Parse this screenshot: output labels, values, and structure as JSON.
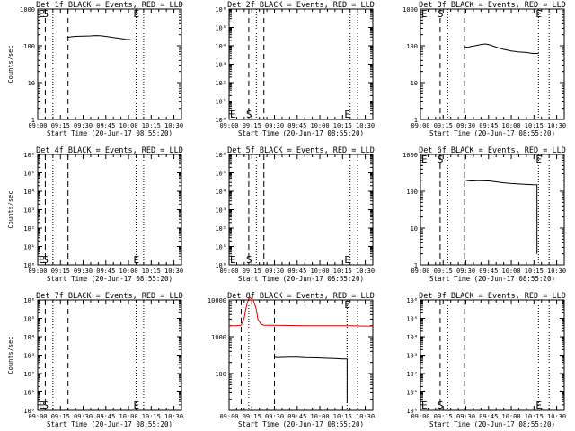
{
  "shared": {
    "ylabel": "Counts/sec",
    "xlabel": "Start Time (20-Jun-17 08:55:20)",
    "xticks": [
      "09:00",
      "09:15",
      "09:30",
      "09:45",
      "10:00",
      "10:15",
      "10:30"
    ],
    "x_range_min": [
      0,
      95
    ],
    "colors": {
      "events": "#000000",
      "lld": "#dd0000",
      "axes": "#000000",
      "background": "#ffffff"
    }
  },
  "chart_data": [
    {
      "type": "line",
      "title": "Det 1f BLACK = Events, RED = LLD",
      "xlabel": "Start Time (20-Jun-17 08:55:20)",
      "ylabel": "Counts/sec",
      "y_scale": "log",
      "ylim": [
        1,
        1000
      ],
      "yticks": [
        {
          "value": 1,
          "label": "1"
        },
        {
          "value": 10,
          "label": "10"
        },
        {
          "value": 100,
          "label": "100"
        },
        {
          "value": 1000,
          "label": "1000"
        }
      ],
      "markers": [
        {
          "label": "E",
          "x": 0,
          "y": 1000
        },
        {
          "label": "S",
          "x": 5,
          "y": 1000
        },
        {
          "label": "E",
          "x": 65,
          "y": 1000
        }
      ],
      "dashed_lines": [
        5,
        20
      ],
      "dotted_lines": [
        10,
        65,
        70
      ],
      "series": [
        {
          "color": "events",
          "points": [
            [
              20,
              170
            ],
            [
              22,
              175
            ],
            [
              25,
              180
            ],
            [
              30,
              182
            ],
            [
              35,
              185
            ],
            [
              38,
              190
            ],
            [
              41,
              188
            ],
            [
              45,
              180
            ],
            [
              50,
              168
            ],
            [
              55,
              158
            ],
            [
              58,
              150
            ],
            [
              60,
              148
            ],
            [
              62,
              145
            ],
            [
              63,
              142
            ]
          ]
        }
      ]
    },
    {
      "type": "line",
      "title": "Det 2f BLACK = Events, RED = LLD",
      "xlabel": "Start Time (20-Jun-17 08:55:20)",
      "ylabel": "",
      "y_scale": "log",
      "ylim": [
        1,
        1000000
      ],
      "yticks": [
        {
          "value": 1,
          "label": "10⁰"
        },
        {
          "value": 10,
          "label": "10¹"
        },
        {
          "value": 100,
          "label": "10²"
        },
        {
          "value": 1000,
          "label": "10³"
        },
        {
          "value": 10000,
          "label": "10⁴"
        },
        {
          "value": 100000,
          "label": "10⁵"
        },
        {
          "value": 1000000,
          "label": "10⁶"
        }
      ],
      "markers": [
        {
          "label": "E",
          "x": 0,
          "y": 1.6
        },
        {
          "label": "S",
          "x": 13,
          "y": 1.6
        },
        {
          "label": "E",
          "x": 78,
          "y": 1.6
        }
      ],
      "dashed_lines": [
        13,
        23
      ],
      "dotted_lines": [
        18,
        80,
        85
      ],
      "series": []
    },
    {
      "type": "line",
      "title": "Det 3f BLACK = Events, RED = LLD",
      "xlabel": "Start Time (20-Jun-17 08:55:20)",
      "ylabel": "",
      "y_scale": "log",
      "ylim": [
        1,
        1000
      ],
      "yticks": [
        {
          "value": 1,
          "label": "1"
        },
        {
          "value": 10,
          "label": "10"
        },
        {
          "value": 100,
          "label": "100"
        },
        {
          "value": 1000,
          "label": "1000"
        }
      ],
      "markers": [
        {
          "label": "E",
          "x": 0,
          "y": 1000
        },
        {
          "label": "S",
          "x": 13,
          "y": 1000
        },
        {
          "label": "E",
          "x": 78,
          "y": 1000
        }
      ],
      "dashed_lines": [
        13,
        29
      ],
      "dotted_lines": [
        18,
        78,
        85
      ],
      "series": [
        {
          "color": "events",
          "points": [
            [
              29,
              95
            ],
            [
              31,
              90
            ],
            [
              33,
              95
            ],
            [
              36,
              100
            ],
            [
              40,
              108
            ],
            [
              43,
              112
            ],
            [
              46,
              105
            ],
            [
              50,
              92
            ],
            [
              55,
              80
            ],
            [
              60,
              72
            ],
            [
              65,
              68
            ],
            [
              70,
              66
            ],
            [
              74,
              62
            ],
            [
              78,
              62
            ]
          ]
        }
      ]
    },
    {
      "type": "line",
      "title": "Det 4f BLACK = Events, RED = LLD",
      "xlabel": "Start Time (20-Jun-17 08:55:20)",
      "ylabel": "Counts/sec",
      "y_scale": "log",
      "ylim": [
        1,
        1000000
      ],
      "yticks": [
        {
          "value": 1,
          "label": "10⁰"
        },
        {
          "value": 10,
          "label": "10¹"
        },
        {
          "value": 100,
          "label": "10²"
        },
        {
          "value": 1000,
          "label": "10³"
        },
        {
          "value": 10000,
          "label": "10⁴"
        },
        {
          "value": 100000,
          "label": "10⁵"
        },
        {
          "value": 1000000,
          "label": "10⁶"
        }
      ],
      "markers": [
        {
          "label": "E",
          "x": 0,
          "y": 1.6
        },
        {
          "label": "S",
          "x": 5,
          "y": 1.6
        },
        {
          "label": "E",
          "x": 65,
          "y": 1.6
        }
      ],
      "dashed_lines": [
        5,
        20
      ],
      "dotted_lines": [
        10,
        65,
        70
      ],
      "series": []
    },
    {
      "type": "line",
      "title": "Det 5f BLACK = Events, RED = LLD",
      "xlabel": "Start Time (20-Jun-17 08:55:20)",
      "ylabel": "",
      "y_scale": "log",
      "ylim": [
        1,
        1000000
      ],
      "yticks": [
        {
          "value": 1,
          "label": "10⁰"
        },
        {
          "value": 10,
          "label": "10¹"
        },
        {
          "value": 100,
          "label": "10²"
        },
        {
          "value": 1000,
          "label": "10³"
        },
        {
          "value": 10000,
          "label": "10⁴"
        },
        {
          "value": 100000,
          "label": "10⁵"
        },
        {
          "value": 1000000,
          "label": "10⁶"
        }
      ],
      "markers": [
        {
          "label": "E",
          "x": 0,
          "y": 1.6
        },
        {
          "label": "S",
          "x": 13,
          "y": 1.6
        },
        {
          "label": "E",
          "x": 78,
          "y": 1.6
        }
      ],
      "dashed_lines": [
        13,
        23
      ],
      "dotted_lines": [
        18,
        80,
        85
      ],
      "series": []
    },
    {
      "type": "line",
      "title": "Det 6f BLACK = Events, RED = LLD",
      "xlabel": "Start Time (20-Jun-17 08:55:20)",
      "ylabel": "",
      "y_scale": "log",
      "ylim": [
        1,
        1000
      ],
      "yticks": [
        {
          "value": 1,
          "label": "1"
        },
        {
          "value": 10,
          "label": "10"
        },
        {
          "value": 100,
          "label": "100"
        },
        {
          "value": 1000,
          "label": "1000"
        }
      ],
      "markers": [
        {
          "label": "E",
          "x": 0,
          "y": 1000
        },
        {
          "label": "S",
          "x": 13,
          "y": 1000
        },
        {
          "label": "E",
          "x": 78,
          "y": 1000
        }
      ],
      "dashed_lines": [
        13,
        29
      ],
      "dotted_lines": [
        18,
        78,
        85
      ],
      "series": [
        {
          "color": "events",
          "points": [
            [
              29,
              205
            ],
            [
              31,
              195
            ],
            [
              34,
              190
            ],
            [
              38,
              195
            ],
            [
              42,
              192
            ],
            [
              46,
              190
            ],
            [
              50,
              180
            ],
            [
              55,
              170
            ],
            [
              60,
              162
            ],
            [
              65,
              158
            ],
            [
              70,
              153
            ],
            [
              75,
              150
            ],
            [
              77,
              150
            ],
            [
              77,
              2
            ]
          ]
        }
      ]
    },
    {
      "type": "line",
      "title": "Det 7f BLACK = Events, RED = LLD",
      "xlabel": "Start Time (20-Jun-17 08:55:20)",
      "ylabel": "Counts/sec",
      "y_scale": "log",
      "ylim": [
        1,
        1000000
      ],
      "yticks": [
        {
          "value": 1,
          "label": "10⁰"
        },
        {
          "value": 10,
          "label": "10¹"
        },
        {
          "value": 100,
          "label": "10²"
        },
        {
          "value": 1000,
          "label": "10³"
        },
        {
          "value": 10000,
          "label": "10⁴"
        },
        {
          "value": 100000,
          "label": "10⁵"
        },
        {
          "value": 1000000,
          "label": "10⁶"
        }
      ],
      "markers": [
        {
          "label": "E",
          "x": 0,
          "y": 1.6
        },
        {
          "label": "S",
          "x": 5,
          "y": 1.6
        },
        {
          "label": "E",
          "x": 65,
          "y": 1.6
        }
      ],
      "dashed_lines": [
        5,
        20
      ],
      "dotted_lines": [
        10,
        65,
        70
      ],
      "series": []
    },
    {
      "type": "line",
      "title": "Det 8f BLACK = Events, RED = LLD",
      "xlabel": "Start Time (20-Jun-17 08:55:20)",
      "ylabel": "",
      "y_scale": "log",
      "ylim": [
        10,
        10000
      ],
      "yticks": [
        {
          "value": 100,
          "label": "100"
        },
        {
          "value": 1000,
          "label": "1000"
        },
        {
          "value": 10000,
          "label": "10000"
        }
      ],
      "markers": [
        {
          "label": "E",
          "x": 78,
          "y": 10000
        }
      ],
      "dashed_lines": [
        8,
        30
      ],
      "dotted_lines": [
        13,
        78,
        85
      ],
      "series": [
        {
          "color": "lld",
          "points": [
            [
              0,
              2000
            ],
            [
              5,
              2000
            ],
            [
              8,
              2050
            ],
            [
              10,
              3200
            ],
            [
              11,
              5500
            ],
            [
              12,
              8200
            ],
            [
              13,
              11000
            ],
            [
              14,
              11500
            ],
            [
              16,
              10000
            ],
            [
              18,
              5500
            ],
            [
              19,
              3000
            ],
            [
              21,
              2200
            ],
            [
              23,
              2050
            ],
            [
              30,
              2050
            ],
            [
              50,
              2000
            ],
            [
              60,
              2000
            ],
            [
              70,
              2000
            ],
            [
              80,
              2000
            ],
            [
              90,
              1950
            ],
            [
              95,
              1950
            ]
          ]
        },
        {
          "color": "events",
          "points": [
            [
              30,
              280
            ],
            [
              32,
              270
            ],
            [
              35,
              275
            ],
            [
              40,
              280
            ],
            [
              45,
              278
            ],
            [
              50,
              270
            ],
            [
              55,
              268
            ],
            [
              60,
              265
            ],
            [
              65,
              260
            ],
            [
              70,
              255
            ],
            [
              75,
              250
            ],
            [
              78,
              248
            ],
            [
              78,
              16
            ]
          ]
        }
      ]
    },
    {
      "type": "line",
      "title": "Det 9f BLACK = Events, RED = LLD",
      "xlabel": "Start Time (20-Jun-17 08:55:20)",
      "ylabel": "",
      "y_scale": "log",
      "ylim": [
        1,
        1000000
      ],
      "yticks": [
        {
          "value": 1,
          "label": "10⁰"
        },
        {
          "value": 10,
          "label": "10¹"
        },
        {
          "value": 100,
          "label": "10²"
        },
        {
          "value": 1000,
          "label": "10³"
        },
        {
          "value": 10000,
          "label": "10⁴"
        },
        {
          "value": 100000,
          "label": "10⁵"
        },
        {
          "value": 1000000,
          "label": "10⁶"
        }
      ],
      "markers": [
        {
          "label": "E",
          "x": 0,
          "y": 1.6
        },
        {
          "label": "S",
          "x": 13,
          "y": 1.6
        },
        {
          "label": "E",
          "x": 78,
          "y": 1.6
        }
      ],
      "dashed_lines": [
        13,
        29
      ],
      "dotted_lines": [
        18,
        78,
        85
      ],
      "series": []
    }
  ]
}
